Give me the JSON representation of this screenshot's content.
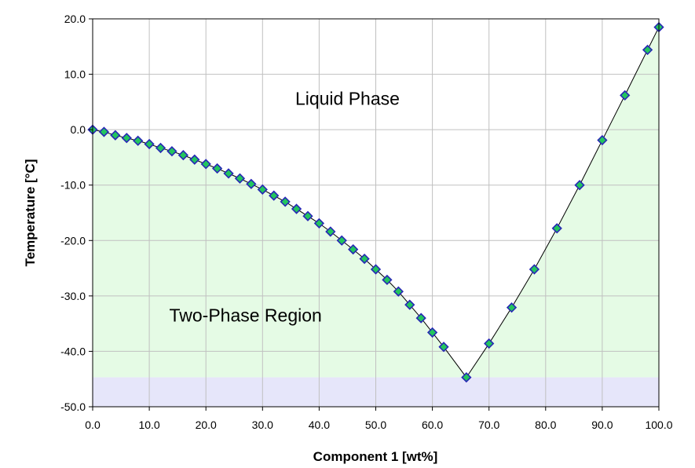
{
  "chart_data": {
    "type": "line",
    "xlabel": "Component 1 [wt%]",
    "ylabel": "Temperature [°C]",
    "xlim": [
      0,
      100
    ],
    "ylim": [
      -50,
      20
    ],
    "x_ticks": [
      "0.0",
      "10.0",
      "20.0",
      "30.0",
      "40.0",
      "50.0",
      "60.0",
      "70.0",
      "80.0",
      "90.0",
      "100.0"
    ],
    "y_ticks": [
      "20.0",
      "10.0",
      "0.0",
      "-10.0",
      "-20.0",
      "-30.0",
      "-40.0",
      "-50.0"
    ],
    "grid": true,
    "annotations": [
      {
        "text": "Liquid Phase",
        "x": 45,
        "y": 4.5
      },
      {
        "text": "Two-Phase Region",
        "x": 27,
        "y": -34.6
      }
    ],
    "series": [
      {
        "x": [
          0,
          2,
          4,
          6,
          8,
          10,
          12,
          14,
          16,
          18,
          20,
          22,
          24,
          26,
          28,
          30,
          32,
          34,
          36,
          38,
          40,
          42,
          44,
          46,
          48,
          50,
          52,
          54,
          56,
          58,
          60,
          62,
          66,
          70,
          74,
          78,
          82,
          86,
          90,
          94,
          98,
          100
        ],
        "y": [
          0,
          -0.4,
          -1,
          -1.5,
          -2,
          -2.6,
          -3.3,
          -3.9,
          -4.6,
          -5.4,
          -6.2,
          -7,
          -7.9,
          -8.8,
          -9.8,
          -10.8,
          -11.9,
          -13,
          -14.3,
          -15.6,
          -16.9,
          -18.4,
          -20,
          -21.6,
          -23.3,
          -25.2,
          -27.1,
          -29.2,
          -31.6,
          -34,
          -36.6,
          -39.2,
          -44.7,
          -38.6,
          -32.1,
          -25.2,
          -17.8,
          -10,
          -1.9,
          6.2,
          14.4,
          18.5
        ]
      }
    ],
    "colors": {
      "two_phase_fill": "#e5fbe5",
      "solid_band": "#e6e6fa",
      "marker_fill": "#22c55e",
      "marker_edge": "#2727b5",
      "line": "#000000",
      "grid": "#c0c0c0"
    }
  }
}
